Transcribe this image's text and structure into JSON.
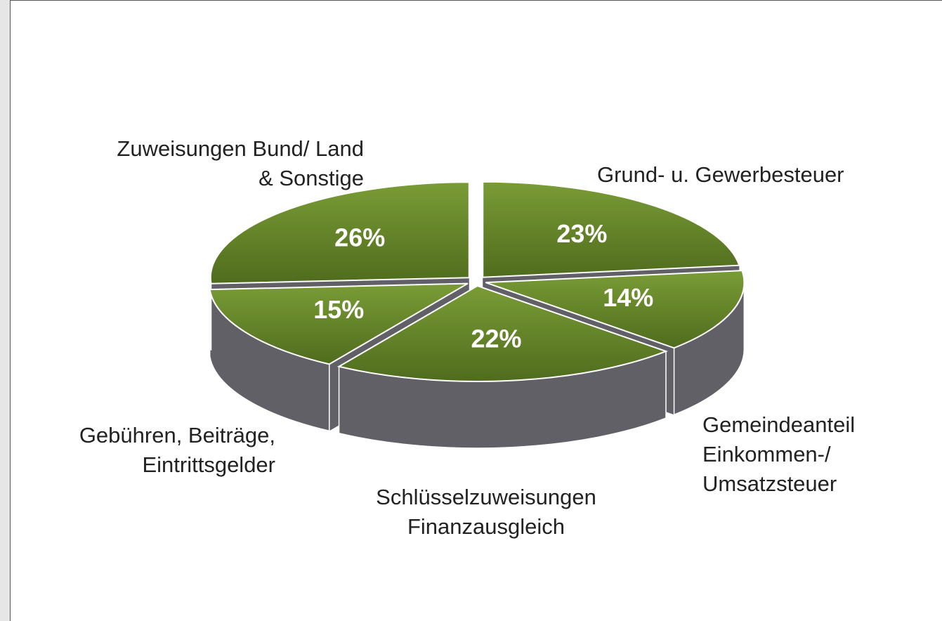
{
  "chart_data": {
    "type": "pie",
    "categories": [
      "Grund- u. Gewerbesteuer",
      "Gemeindeanteil\nEinkommen-/\nUmsatzsteuer",
      "Schlüsselzuweisungen\nFinanzausgleich",
      "Gebühren, Beiträge,\nEintrittsgelder",
      "Zuweisungen Bund/ Land\n& Sonstige"
    ],
    "values": [
      23,
      14,
      22,
      15,
      26
    ],
    "value_labels": [
      "23%",
      "14%",
      "22%",
      "15%",
      "26%"
    ],
    "color": "#6b8c2c",
    "side_color": "#606066"
  }
}
